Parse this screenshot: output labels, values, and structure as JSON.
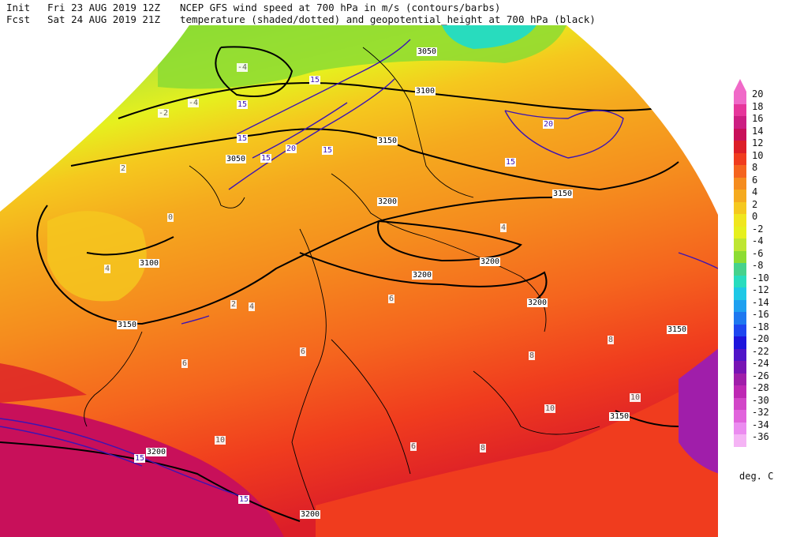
{
  "header": {
    "init_label": "Init",
    "init_time": "Fri 23 AUG 2019 12Z",
    "fcst_label": "Fcst",
    "fcst_time": "Sat 24 AUG 2019 21Z",
    "title_line1": "NCEP GFS wind speed at 700 hPa in m/s (contours/barbs)",
    "title_line2": "temperature (shaded/dotted) and geopotential_height at 700 hPa (black)"
  },
  "colorbar": {
    "unit": "deg. C",
    "levels": [
      {
        "label": "20",
        "color": "#f069c8"
      },
      {
        "label": "18",
        "color": "#e6369b"
      },
      {
        "label": "16",
        "color": "#cc1e82"
      },
      {
        "label": "14",
        "color": "#c8105a"
      },
      {
        "label": "12",
        "color": "#dc1e28"
      },
      {
        "label": "10",
        "color": "#f03c1e"
      },
      {
        "label": "8",
        "color": "#f5641e"
      },
      {
        "label": "6",
        "color": "#f58c1e"
      },
      {
        "label": "4",
        "color": "#f5aa1e"
      },
      {
        "label": "2",
        "color": "#f5c81e"
      },
      {
        "label": "0",
        "color": "#f0e61e"
      },
      {
        "label": "-2",
        "color": "#e6f01e"
      },
      {
        "label": "-4",
        "color": "#bee632"
      },
      {
        "label": "-6",
        "color": "#8cdc32"
      },
      {
        "label": "-8",
        "color": "#46d28c"
      },
      {
        "label": "-10",
        "color": "#28dcbe"
      },
      {
        "label": "-12",
        "color": "#1ec8e6"
      },
      {
        "label": "-14",
        "color": "#1ea0f0"
      },
      {
        "label": "-16",
        "color": "#1e78f0"
      },
      {
        "label": "-18",
        "color": "#1e46f0"
      },
      {
        "label": "-20",
        "color": "#1e14dc"
      },
      {
        "label": "-22",
        "color": "#5014c8"
      },
      {
        "label": "-24",
        "color": "#7814b4"
      },
      {
        "label": "-26",
        "color": "#a01eaa"
      },
      {
        "label": "-28",
        "color": "#be28b4"
      },
      {
        "label": "-30",
        "color": "#d246c8"
      },
      {
        "label": "-32",
        "color": "#e164dc"
      },
      {
        "label": "-34",
        "color": "#eb8cf0"
      },
      {
        "label": "-36",
        "color": "#f5b4f5"
      }
    ]
  },
  "map_labels": {
    "height": [
      "3050",
      "3100",
      "3150",
      "3200",
      "3200",
      "3200",
      "3200",
      "3150",
      "3150",
      "3100",
      "3050",
      "3150",
      "3200",
      "3200",
      "3150"
    ],
    "wind": [
      "15",
      "15",
      "20",
      "15",
      "15",
      "20",
      "15",
      "15",
      "15",
      "15"
    ],
    "temp": [
      "-4",
      "-2",
      "-4",
      "0",
      "2",
      "4",
      "6",
      "4",
      "2",
      "6",
      "8",
      "6",
      "4",
      "8",
      "10",
      "10",
      "10",
      "8",
      "6"
    ]
  }
}
